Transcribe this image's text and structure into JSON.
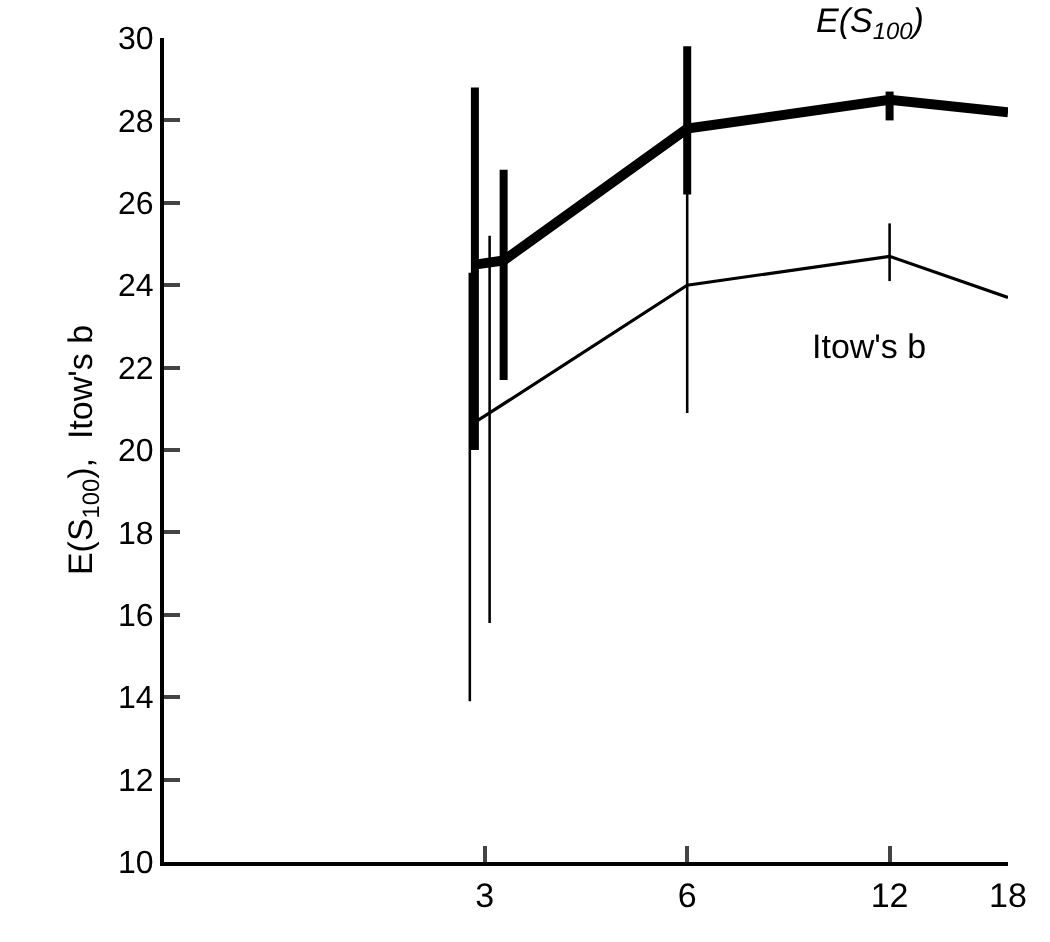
{
  "chart_data": {
    "type": "line",
    "ylabel": "E(S$_{100}$),  Itow's b",
    "log": "x",
    "xlim": [
      1,
      18
    ],
    "xticks": [
      3,
      6,
      12,
      18
    ],
    "ylim": [
      10,
      30
    ],
    "yticks": [
      10,
      12,
      14,
      16,
      18,
      20,
      22,
      24,
      26,
      28,
      30
    ],
    "legend": false,
    "marker": "none",
    "line_style": "solid",
    "series": [
      {
        "name": "E(S$_{100}$)",
        "color": "#000000",
        "x": [
          2.9,
          3.2,
          6,
          12,
          18
        ],
        "values": [
          24.5,
          24.6,
          27.8,
          28.5,
          28.2
        ],
        "errors": [
          [
            20.0,
            28.8
          ],
          [
            21.7,
            26.8
          ],
          [
            26.2,
            29.8
          ],
          [
            28.0,
            28.7
          ],
          null
        ]
      },
      {
        "name": "Itow's b",
        "color": "#000000",
        "x": [
          2.85,
          3.05,
          6,
          12,
          18
        ],
        "values": [
          20.6,
          20.9,
          24.0,
          24.7,
          23.7
        ],
        "errors": [
          [
            13.9,
            24.3
          ],
          [
            15.8,
            25.2
          ],
          [
            20.9,
            27.2
          ],
          [
            24.1,
            25.5
          ],
          null
        ]
      }
    ]
  }
}
